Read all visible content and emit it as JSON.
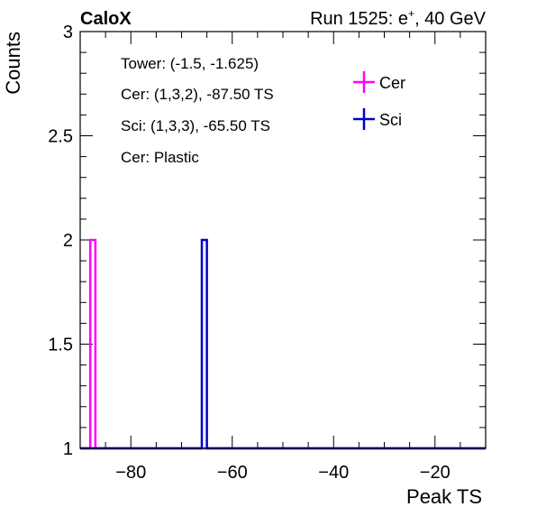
{
  "header": {
    "left": "CaloX",
    "right_prefix": "Run 1525: e",
    "right_sup": "+",
    "right_suffix": ", 40 GeV"
  },
  "annotations": [
    "Tower: (-1.5, -1.625)",
    "Cer: (1,3,2), -87.50 TS",
    "Sci: (1,3,3), -65.50 TS",
    "Cer: Plastic"
  ],
  "chart_data": {
    "type": "histogram",
    "xlabel": "Peak TS",
    "ylabel": "Counts",
    "xlim": [
      -90,
      -10
    ],
    "ylim": [
      1,
      3
    ],
    "x_ticks": [
      -80,
      -60,
      -40,
      -20
    ],
    "x_tick_labels": [
      "−80",
      "−60",
      "−40",
      "−20"
    ],
    "y_ticks": [
      1,
      1.5,
      2,
      2.5,
      3
    ],
    "y_tick_labels": [
      "1",
      "1.5",
      "2",
      "2.5",
      "3"
    ],
    "legend_position": "top-right",
    "series": [
      {
        "name": "Cer",
        "color": "#ff00ff",
        "bins": [
          {
            "x0": -88,
            "x1": -87,
            "count": 2
          }
        ]
      },
      {
        "name": "Sci",
        "color": "#0000cc",
        "bins": [
          {
            "x0": -66,
            "x1": -65,
            "count": 2
          }
        ]
      }
    ]
  }
}
